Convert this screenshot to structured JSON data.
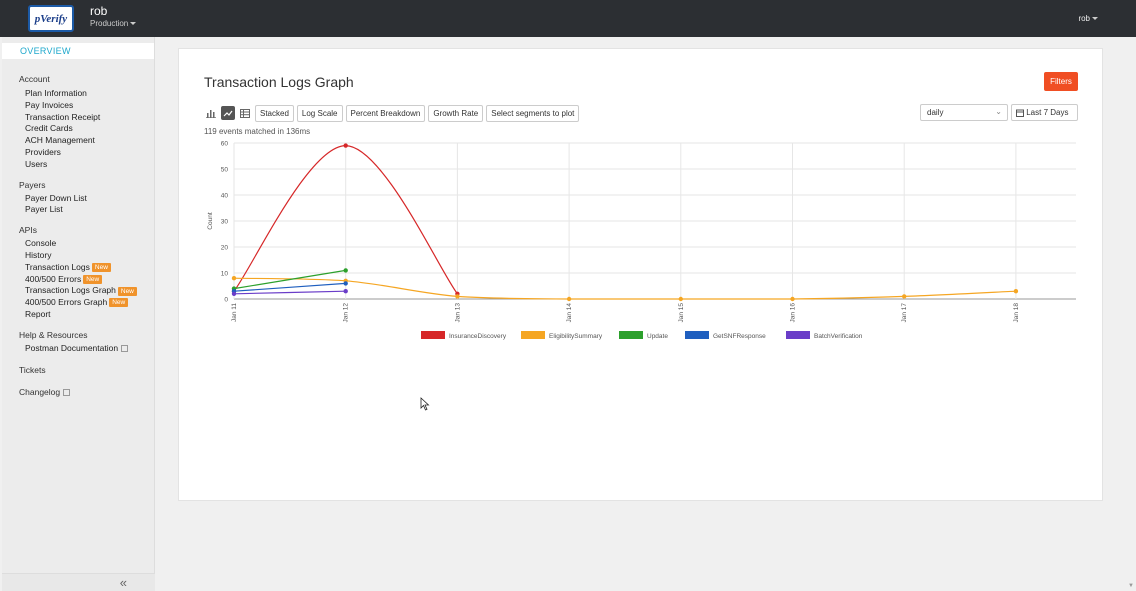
{
  "app": {
    "logo_text": "pVerify",
    "user_name": "rob",
    "environment": "Production",
    "top_user": "rob"
  },
  "sidebar": {
    "overview": "OVERVIEW",
    "account_title": "Account",
    "account_items": [
      "Plan Information",
      "Pay Invoices",
      "Transaction Receipt",
      "Credit Cards",
      "ACH Management",
      "Providers",
      "Users"
    ],
    "payers_title": "Payers",
    "payers_items": [
      "Payer Down List",
      "Payer List"
    ],
    "apis_title": "APIs",
    "apis_items": [
      "Console",
      "History",
      "Transaction Logs",
      "400/500 Errors",
      "Transaction Logs Graph",
      "400/500 Errors Graph",
      "Report"
    ],
    "new_badge": "New",
    "help_title": "Help & Resources",
    "help_items": [
      "Postman Documentation"
    ],
    "tickets": "Tickets",
    "changelog": "Changelog",
    "collapse_icon": "«"
  },
  "panel": {
    "title": "Transaction Logs Graph",
    "filters_label": "Filters",
    "stacked": "Stacked",
    "log_scale": "Log Scale",
    "percent_breakdown": "Percent Breakdown",
    "growth_rate": "Growth Rate",
    "select_segments": "Select segments to plot",
    "period": "daily",
    "date_range": "Last 7 Days",
    "matched": "119 events matched in 136ms"
  },
  "chart_data": {
    "type": "line",
    "ylabel": "Count",
    "ylim": [
      0,
      60
    ],
    "yticks": [
      0,
      10,
      20,
      30,
      40,
      50,
      60
    ],
    "categories": [
      "Jan 11",
      "Jan 12",
      "Jan 13",
      "Jan 14",
      "Jan 15",
      "Jan 16",
      "Jan 17",
      "Jan 18"
    ],
    "series": [
      {
        "name": "InsuranceDiscovery",
        "color": "#d62728",
        "values": [
          3,
          59,
          2,
          null,
          null,
          null,
          null,
          null
        ]
      },
      {
        "name": "EligibilitySummary",
        "color": "#f5a623",
        "values": [
          8,
          7,
          1,
          0,
          0,
          0,
          1,
          3
        ]
      },
      {
        "name": "Update",
        "color": "#2ca02c",
        "values": [
          4,
          11,
          null,
          null,
          null,
          null,
          null,
          null
        ]
      },
      {
        "name": "GetSNFResponse",
        "color": "#1f5fbf",
        "values": [
          3,
          6,
          null,
          null,
          null,
          null,
          null,
          null
        ]
      },
      {
        "name": "BatchVerification",
        "color": "#6a3dc8",
        "values": [
          2,
          3,
          null,
          null,
          null,
          null,
          null,
          null
        ]
      }
    ],
    "grid": true,
    "legend": "bottom-center"
  }
}
